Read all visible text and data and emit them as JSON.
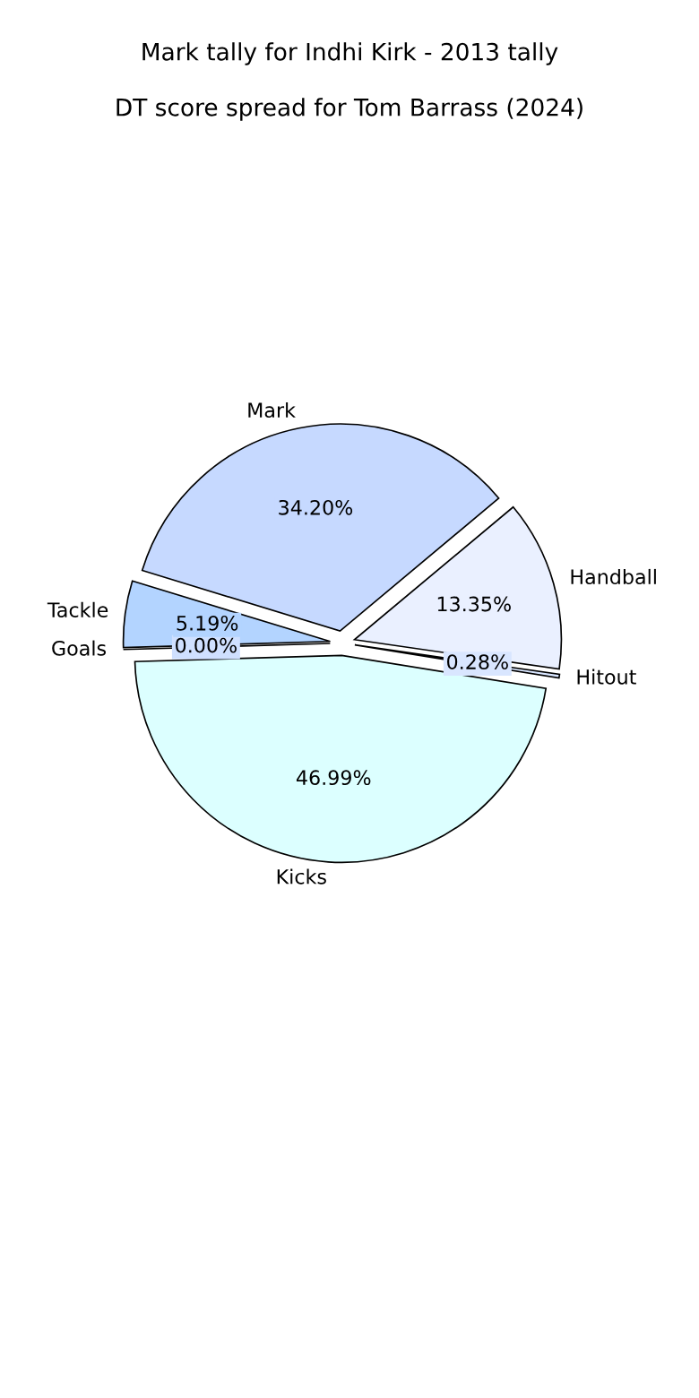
{
  "chart_data": {
    "type": "pie",
    "title": "Mark tally for Indhi Kirk - 2013 tally",
    "subtitle": "DT score spread for Tom Barrass (2024)",
    "categories": [
      "Mark",
      "Handball",
      "Hitout",
      "Kicks",
      "Goals",
      "Tackle"
    ],
    "values": [
      34.2,
      13.35,
      0.28,
      46.99,
      0.0,
      5.19
    ],
    "value_labels": [
      "34.20%",
      "13.35%",
      "0.28%",
      "46.99%",
      "0.00%",
      "5.19%"
    ],
    "colors": [
      "#c6d9ff",
      "#eaf0ff",
      "#d9e6ff",
      "#dcffff",
      "#cfe0ff",
      "#b3d4ff"
    ],
    "legend": false
  }
}
